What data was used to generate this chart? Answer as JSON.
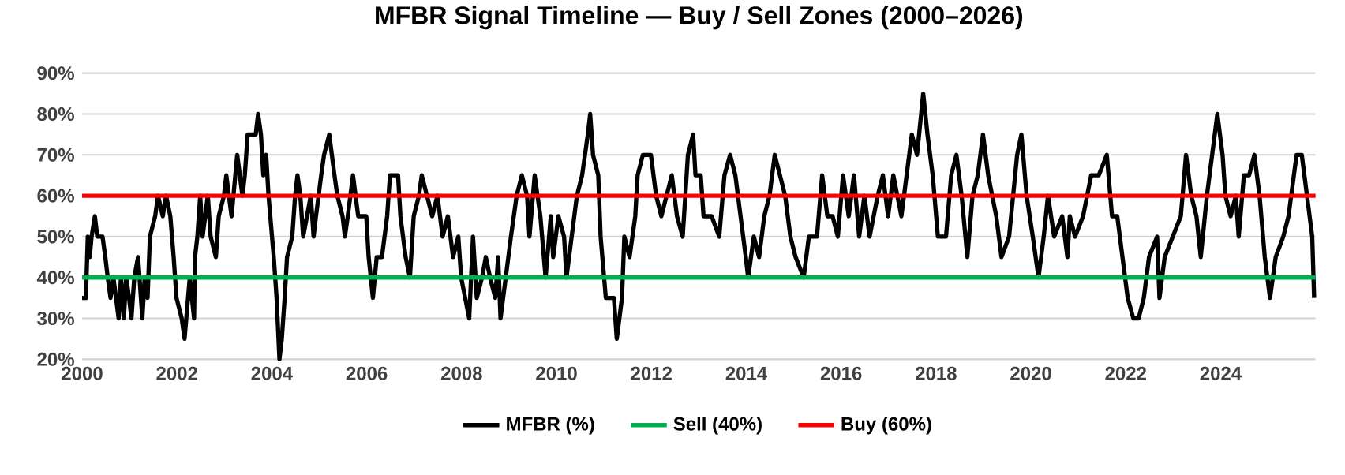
{
  "chart_data": {
    "type": "line",
    "title": "MFBR Signal Timeline — Buy / Sell Zones (2000–2026)",
    "x": [
      2000.0,
      2000.08,
      2000.12,
      2000.16,
      2000.2,
      2000.27,
      2000.32,
      2000.43,
      2000.49,
      2000.54,
      2000.6,
      2000.66,
      2000.77,
      2000.82,
      2000.88,
      2000.93,
      2000.99,
      2001.04,
      2001.1,
      2001.18,
      2001.21,
      2001.27,
      2001.32,
      2001.38,
      2001.43,
      2001.54,
      2001.6,
      2001.7,
      2001.77,
      2001.86,
      2001.93,
      2001.99,
      2002.1,
      2002.16,
      2002.27,
      2002.36,
      2002.38,
      2002.43,
      2002.49,
      2002.54,
      2002.65,
      2002.71,
      2002.82,
      2002.88,
      2002.99,
      2003.04,
      2003.15,
      2003.27,
      2003.38,
      2003.43,
      2003.49,
      2003.66,
      2003.71,
      2003.77,
      2003.82,
      2003.88,
      2003.93,
      2004.04,
      2004.1,
      2004.16,
      2004.21,
      2004.27,
      2004.32,
      2004.43,
      2004.49,
      2004.54,
      2004.6,
      2004.66,
      2004.82,
      2004.88,
      2004.93,
      2005.04,
      2005.1,
      2005.21,
      2005.32,
      2005.38,
      2005.49,
      2005.54,
      2005.6,
      2005.71,
      2005.82,
      2005.99,
      2006.04,
      2006.13,
      2006.21,
      2006.32,
      2006.43,
      2006.49,
      2006.66,
      2006.71,
      2006.82,
      2006.91,
      2006.99,
      2007.1,
      2007.16,
      2007.27,
      2007.38,
      2007.49,
      2007.6,
      2007.71,
      2007.82,
      2007.93,
      2007.99,
      2008.16,
      2008.24,
      2008.32,
      2008.43,
      2008.51,
      2008.6,
      2008.71,
      2008.77,
      2008.82,
      2008.93,
      2009.04,
      2009.16,
      2009.27,
      2009.38,
      2009.43,
      2009.54,
      2009.66,
      2009.77,
      2009.88,
      2009.93,
      2010.04,
      2010.16,
      2010.21,
      2010.32,
      2010.43,
      2010.54,
      2010.6,
      2010.66,
      2010.71,
      2010.77,
      2010.88,
      2010.93,
      2011.04,
      2011.21,
      2011.27,
      2011.38,
      2011.43,
      2011.54,
      2011.66,
      2011.71,
      2011.82,
      2011.99,
      2012.1,
      2012.21,
      2012.32,
      2012.43,
      2012.54,
      2012.66,
      2012.77,
      2012.88,
      2012.93,
      2013.04,
      2013.1,
      2013.27,
      2013.43,
      2013.54,
      2013.66,
      2013.77,
      2013.88,
      2013.99,
      2014.04,
      2014.16,
      2014.27,
      2014.38,
      2014.49,
      2014.6,
      2014.71,
      2014.82,
      2014.93,
      2015.04,
      2015.21,
      2015.32,
      2015.49,
      2015.6,
      2015.71,
      2015.82,
      2015.93,
      2016.04,
      2016.16,
      2016.27,
      2016.38,
      2016.49,
      2016.6,
      2016.77,
      2016.88,
      2016.99,
      2017.1,
      2017.27,
      2017.38,
      2017.49,
      2017.6,
      2017.73,
      2017.82,
      2017.93,
      2018.04,
      2018.21,
      2018.32,
      2018.43,
      2018.54,
      2018.66,
      2018.77,
      2018.88,
      2018.99,
      2019.1,
      2019.27,
      2019.38,
      2019.54,
      2019.71,
      2019.8,
      2019.91,
      2020.04,
      2020.16,
      2020.27,
      2020.36,
      2020.49,
      2020.66,
      2020.77,
      2020.82,
      2020.93,
      2021.1,
      2021.27,
      2021.43,
      2021.6,
      2021.71,
      2021.82,
      2021.93,
      2022.04,
      2022.16,
      2022.27,
      2022.38,
      2022.49,
      2022.66,
      2022.71,
      2022.82,
      2022.99,
      2023.16,
      2023.27,
      2023.38,
      2023.49,
      2023.58,
      2023.71,
      2023.82,
      2023.93,
      2024.04,
      2024.1,
      2024.21,
      2024.32,
      2024.38,
      2024.49,
      2024.6,
      2024.71,
      2024.82,
      2024.93,
      2025.04,
      2025.16,
      2025.32,
      2025.43,
      2025.6,
      2025.71,
      2025.82,
      2025.93,
      2025.97
    ],
    "series": [
      {
        "name": "MFBR (%)",
        "color": "#000000",
        "values": [
          35,
          35,
          50,
          45,
          50,
          55,
          50,
          50,
          45,
          40,
          35,
          40,
          30,
          40,
          30,
          40,
          35,
          30,
          40,
          45,
          40,
          30,
          40,
          35,
          50,
          55,
          60,
          55,
          60,
          55,
          45,
          35,
          30,
          25,
          40,
          30,
          45,
          50,
          60,
          50,
          60,
          50,
          45,
          55,
          60,
          65,
          55,
          70,
          60,
          65,
          75,
          75,
          80,
          75,
          65,
          70,
          60,
          45,
          35,
          20,
          25,
          35,
          45,
          50,
          60,
          65,
          60,
          50,
          60,
          50,
          55,
          65,
          70,
          75,
          65,
          60,
          55,
          50,
          55,
          65,
          55,
          55,
          45,
          35,
          45,
          45,
          55,
          65,
          65,
          55,
          45,
          40,
          55,
          60,
          65,
          60,
          55,
          60,
          50,
          55,
          45,
          50,
          40,
          30,
          50,
          35,
          40,
          45,
          40,
          35,
          45,
          30,
          40,
          50,
          60,
          65,
          60,
          50,
          65,
          55,
          40,
          55,
          45,
          55,
          50,
          40,
          50,
          60,
          65,
          70,
          75,
          80,
          70,
          65,
          50,
          35,
          35,
          25,
          35,
          50,
          45,
          55,
          65,
          70,
          70,
          60,
          55,
          60,
          65,
          55,
          50,
          70,
          75,
          65,
          65,
          55,
          55,
          50,
          65,
          70,
          65,
          55,
          45,
          40,
          50,
          45,
          55,
          60,
          70,
          65,
          60,
          50,
          45,
          40,
          50,
          50,
          65,
          55,
          55,
          50,
          65,
          55,
          65,
          50,
          60,
          50,
          60,
          65,
          55,
          65,
          55,
          65,
          75,
          70,
          85,
          75,
          65,
          50,
          50,
          65,
          70,
          60,
          45,
          60,
          65,
          75,
          65,
          55,
          45,
          50,
          70,
          75,
          60,
          50,
          40,
          50,
          60,
          50,
          55,
          45,
          55,
          50,
          55,
          65,
          65,
          70,
          55,
          55,
          45,
          35,
          30,
          30,
          35,
          45,
          50,
          35,
          45,
          50,
          55,
          70,
          60,
          55,
          45,
          60,
          70,
          80,
          70,
          60,
          55,
          60,
          50,
          65,
          65,
          70,
          60,
          45,
          35,
          45,
          50,
          55,
          70,
          70,
          60,
          50,
          35
        ]
      }
    ],
    "ref_lines": [
      {
        "axis": "y",
        "value": 40,
        "label": "Sell (40%)",
        "color": "#00b050"
      },
      {
        "axis": "y",
        "value": 60,
        "label": "Buy (60%)",
        "color": "#ff0000"
      }
    ],
    "xlim": [
      2000,
      2026
    ],
    "ylim": [
      20,
      90
    ],
    "xticks": [
      2000,
      2002,
      2004,
      2006,
      2008,
      2010,
      2012,
      2014,
      2016,
      2018,
      2020,
      2022,
      2024
    ],
    "yticks": [
      {
        "value": 20,
        "label": "20%"
      },
      {
        "value": 30,
        "label": "30%"
      },
      {
        "value": 40,
        "label": "40%"
      },
      {
        "value": 50,
        "label": "50%"
      },
      {
        "value": 60,
        "label": "60%"
      },
      {
        "value": 70,
        "label": "70%"
      },
      {
        "value": 80,
        "label": "80%"
      },
      {
        "value": 90,
        "label": "90%"
      }
    ],
    "grid": "y",
    "legend": "bottom",
    "line_style": "solid"
  }
}
